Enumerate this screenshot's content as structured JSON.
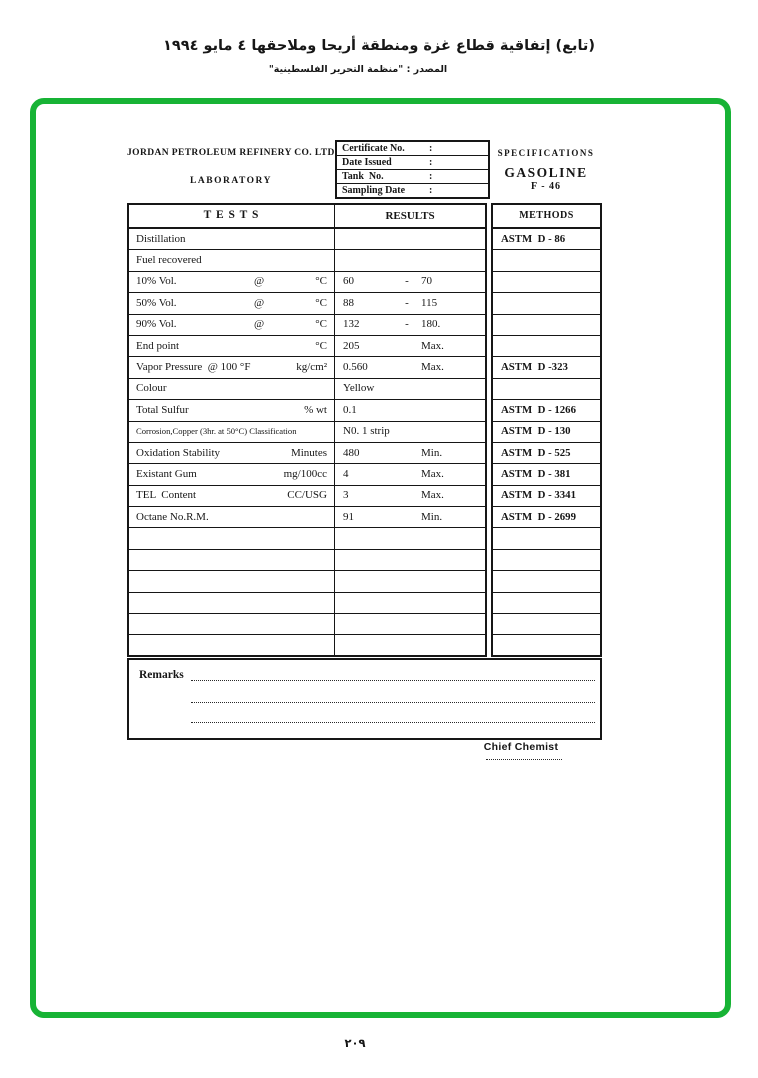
{
  "page": {
    "title_arabic": "(تابع) إتفاقية قطاع غزة ومنطقة أريحا وملاحقها ٤ مايو ١٩٩٤",
    "source_arabic": "المصدر :  \"منظمة التحرير الفلسطينية\"",
    "page_number": "٢٠٩"
  },
  "header": {
    "company_line1": "JORDAN PETROLEUM REFINERY CO. LTD.",
    "company_line2": "LABORATORY",
    "certificate_fields": [
      {
        "label": "Certificate No.",
        "colon": ":",
        "value": ""
      },
      {
        "label": "Date Issued",
        "colon": ":",
        "value": ""
      },
      {
        "label": "Tank  No.",
        "colon": ":",
        "value": ""
      },
      {
        "label": "Sampling Date",
        "colon": ":",
        "value": ""
      }
    ],
    "spec_title": "SPECIFICATIONS",
    "product": "GASOLINE",
    "grade": "F - 46"
  },
  "table": {
    "headers": {
      "tests": "T E S T S",
      "results": "RESULTS",
      "methods": "METHODS"
    },
    "rows": [
      {
        "test": "Distillation",
        "method": "ASTM  D - 86"
      },
      {
        "test": "Fuel recovered"
      },
      {
        "test": "10% Vol.",
        "mid": "@",
        "unit": "°C",
        "r1": "60",
        "r2": "-",
        "r3": "70"
      },
      {
        "test": "50% Vol.",
        "mid": "@",
        "unit": "°C",
        "r1": "88",
        "r2": "-",
        "r3": "115"
      },
      {
        "test": "90% Vol.",
        "mid": "@",
        "unit": "°C",
        "r1": "132",
        "r2": "-",
        "r3": "180."
      },
      {
        "test": "End point",
        "unit": "°C",
        "r1": "205",
        "r3": "Max."
      },
      {
        "test": "Vapor Pressure  @ 100 °F",
        "unit": "kg/cm²",
        "r1": "0.560",
        "r3": "Max.",
        "method": "ASTM  D -323"
      },
      {
        "test": "Colour",
        "r1": "Yellow"
      },
      {
        "test": "Total Sulfur",
        "unit": "% wt",
        "r1": "0.1",
        "method": "ASTM  D - 1266"
      },
      {
        "test": "Corrosion,Copper (3hr. at 50°C) Classification",
        "r1": "N0. 1 strip",
        "method": "ASTM  D - 130",
        "small": true
      },
      {
        "test": "Oxidation Stability",
        "unit": "Minutes",
        "r1": "480",
        "r3": "Min.",
        "method": "ASTM  D - 525"
      },
      {
        "test": "Existant Gum",
        "unit": "mg/100cc",
        "r1": "4",
        "r3": "Max.",
        "method": "ASTM  D - 381"
      },
      {
        "test": "TEL  Content",
        "unit": "CC/USG",
        "r1": "3",
        "r3": "Max.",
        "method": "ASTM  D - 3341"
      },
      {
        "test": "Octane No.R.M.",
        "r1": "91",
        "r3": "Min.",
        "method": "ASTM  D - 2699"
      }
    ],
    "empty_rows": 6
  },
  "remarks": {
    "label": "Remarks"
  },
  "signature": {
    "title": "Chief Chemist"
  }
}
